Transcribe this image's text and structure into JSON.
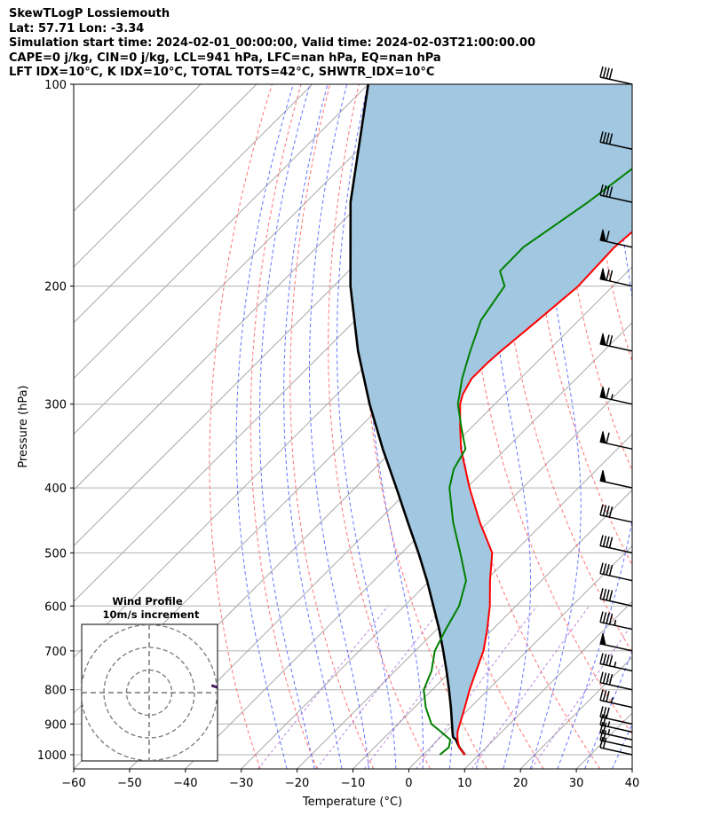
{
  "header": {
    "line1": "SkewTLogP Lossiemouth",
    "line2": "Lat: 57.71   Lon: -3.34",
    "line3": "Simulation start time: 2024-02-01_00:00:00, Valid time: 2024-02-03T21:00:00.00",
    "line4": "CAPE=0 j/kg, CIN=0 j/kg, LCL=941 hPa, LFC=nan hPa, EQ=nan hPa",
    "line5": "LFT IDX=10$^\\circ$C, K IDX=10$^\\circ$C, TOTAL TOTS=42$^\\circ$C, SHWTR_IDX=10$^\\circ$C"
  },
  "chart_data": {
    "type": "line",
    "xlabel": "Temperature ($^\\circ$C)",
    "ylabel": "Pressure (hPa)",
    "xlim": [
      -60,
      40
    ],
    "ylim": [
      1050,
      100
    ],
    "yscale": "log",
    "skew": true,
    "grid": true,
    "x_ticks": [
      "−60",
      "−50",
      "−40",
      "−30",
      "−20",
      "−10",
      "0",
      "10",
      "20",
      "30",
      "40"
    ],
    "x_tick_values": [
      -60,
      -50,
      -40,
      -30,
      -20,
      -10,
      0,
      10,
      20,
      30,
      40
    ],
    "y_ticks": [
      "1000",
      "900",
      "800",
      "700",
      "600",
      "500",
      "400",
      "300",
      "200",
      "100"
    ],
    "y_tick_values": [
      1000,
      900,
      800,
      700,
      600,
      500,
      400,
      300,
      200,
      100
    ],
    "temperature": {
      "color": "#ff0000",
      "p": [
        1000,
        975,
        950,
        925,
        900,
        850,
        800,
        750,
        700,
        650,
        600,
        550,
        500,
        450,
        400,
        350,
        325,
        300,
        290,
        275,
        260,
        250,
        225,
        200,
        175,
        150,
        125,
        100
      ],
      "t": [
        7.5,
        5.2,
        3.5,
        2.1,
        1.1,
        -1.0,
        -3.3,
        -5.5,
        -7.8,
        -11,
        -14.7,
        -19.2,
        -23.8,
        -31.5,
        -39.5,
        -48,
        -52,
        -56.2,
        -57.5,
        -58.7,
        -58.7,
        -58.4,
        -57.3,
        -56.2,
        -56.7,
        -55.4,
        -55.3,
        -55.5
      ]
    },
    "dewpoint": {
      "color": "#008000",
      "p": [
        1000,
        975,
        950,
        925,
        900,
        850,
        800,
        750,
        700,
        650,
        600,
        550,
        500,
        450,
        400,
        375,
        350,
        325,
        300,
        275,
        250,
        225,
        200,
        190,
        175,
        150,
        125,
        100
      ],
      "td": [
        3.0,
        3.3,
        2.2,
        -0.8,
        -4.0,
        -8.0,
        -11.5,
        -13.5,
        -16.5,
        -18.4,
        -20.2,
        -23.5,
        -29.5,
        -36.3,
        -43.1,
        -45.7,
        -47.2,
        -51.8,
        -56.6,
        -60.4,
        -63.9,
        -67.5,
        -69.4,
        -72.9,
        -73,
        -69.5,
        -66.5,
        -63.3
      ]
    },
    "parcel": {
      "color": "#000000",
      "p": [
        1000,
        975,
        950,
        941,
        925,
        900,
        850,
        800,
        750,
        700,
        650,
        600,
        550,
        500,
        450,
        400,
        350,
        300,
        250,
        200,
        150,
        100
      ],
      "t": [
        7.5,
        5.2,
        3.2,
        2.2,
        1.2,
        -0.3,
        -3.5,
        -7.0,
        -10.8,
        -15.0,
        -19.6,
        -24.8,
        -30.5,
        -37.0,
        -44.4,
        -52.6,
        -62.0,
        -72.4,
        -84.0,
        -97.0,
        -112.0,
        -130.0
      ]
    },
    "shading_color": "#a2c7e0",
    "wind_barbs": {
      "p": [
        1000,
        975,
        950,
        925,
        900,
        850,
        800,
        750,
        700,
        650,
        600,
        550,
        500,
        450,
        400,
        350,
        300,
        250,
        200,
        175,
        150,
        125,
        100
      ],
      "speed_kt": [
        20,
        22,
        25,
        28,
        30,
        35,
        40,
        45,
        50,
        45,
        40,
        40,
        40,
        40,
        50,
        60,
        65,
        70,
        70,
        60,
        40,
        40,
        40
      ],
      "dir_deg": [
        255,
        258,
        262,
        265,
        268,
        270,
        272,
        275,
        278,
        278,
        278,
        278,
        278,
        278,
        280,
        282,
        282,
        282,
        280,
        280,
        280,
        280,
        280
      ]
    },
    "inset": {
      "title1": "Wind Profile",
      "title2": "10m/s increment",
      "rings_ms": [
        10,
        20,
        30
      ]
    }
  }
}
